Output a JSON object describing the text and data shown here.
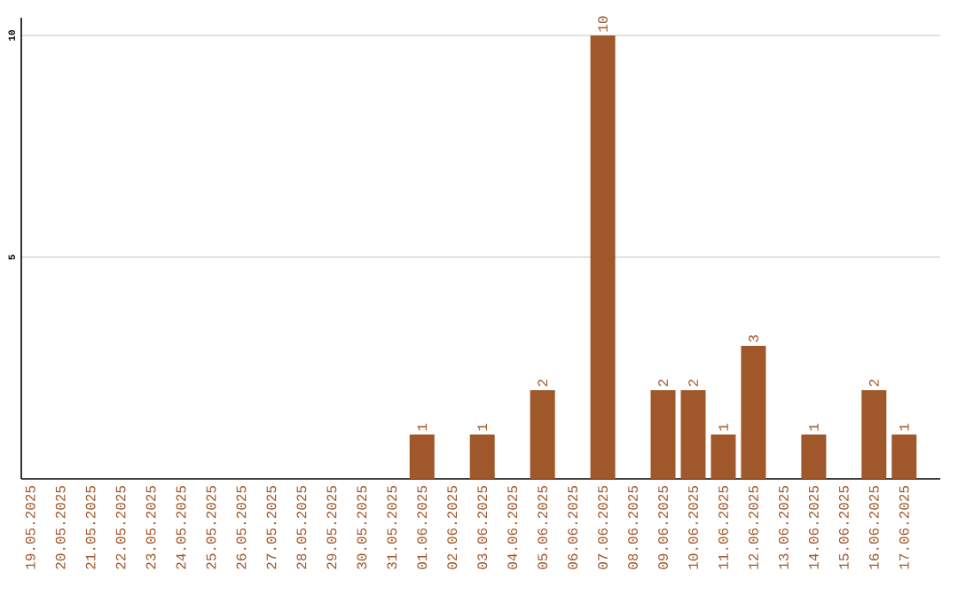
{
  "chart_data": {
    "type": "bar",
    "categories": [
      "19.05.2025",
      "20.05.2025",
      "21.05.2025",
      "22.05.2025",
      "23.05.2025",
      "24.05.2025",
      "25.05.2025",
      "26.05.2025",
      "27.05.2025",
      "28.05.2025",
      "29.05.2025",
      "30.05.2025",
      "31.05.2025",
      "01.06.2025",
      "02.06.2025",
      "03.06.2025",
      "04.06.2025",
      "05.06.2025",
      "06.06.2025",
      "07.06.2025",
      "08.06.2025",
      "09.06.2025",
      "10.06.2025",
      "11.06.2025",
      "12.06.2025",
      "13.06.2025",
      "14.06.2025",
      "15.06.2025",
      "16.06.2025",
      "17.06.2025"
    ],
    "values": [
      0,
      0,
      0,
      0,
      0,
      0,
      0,
      0,
      0,
      0,
      0,
      0,
      0,
      1,
      0,
      1,
      0,
      2,
      0,
      10,
      0,
      2,
      2,
      1,
      3,
      0,
      1,
      0,
      2,
      1
    ],
    "value_labels": [
      null,
      null,
      null,
      null,
      null,
      null,
      null,
      null,
      null,
      null,
      null,
      null,
      null,
      "1",
      null,
      "1",
      null,
      "2",
      null,
      "10",
      null,
      "2",
      "2",
      "1",
      "3",
      null,
      "1",
      null,
      "2",
      "1"
    ],
    "color": "#a0572a",
    "ylim": [
      0,
      10.4
    ],
    "yticks": [
      5,
      10
    ],
    "grid": "y"
  }
}
